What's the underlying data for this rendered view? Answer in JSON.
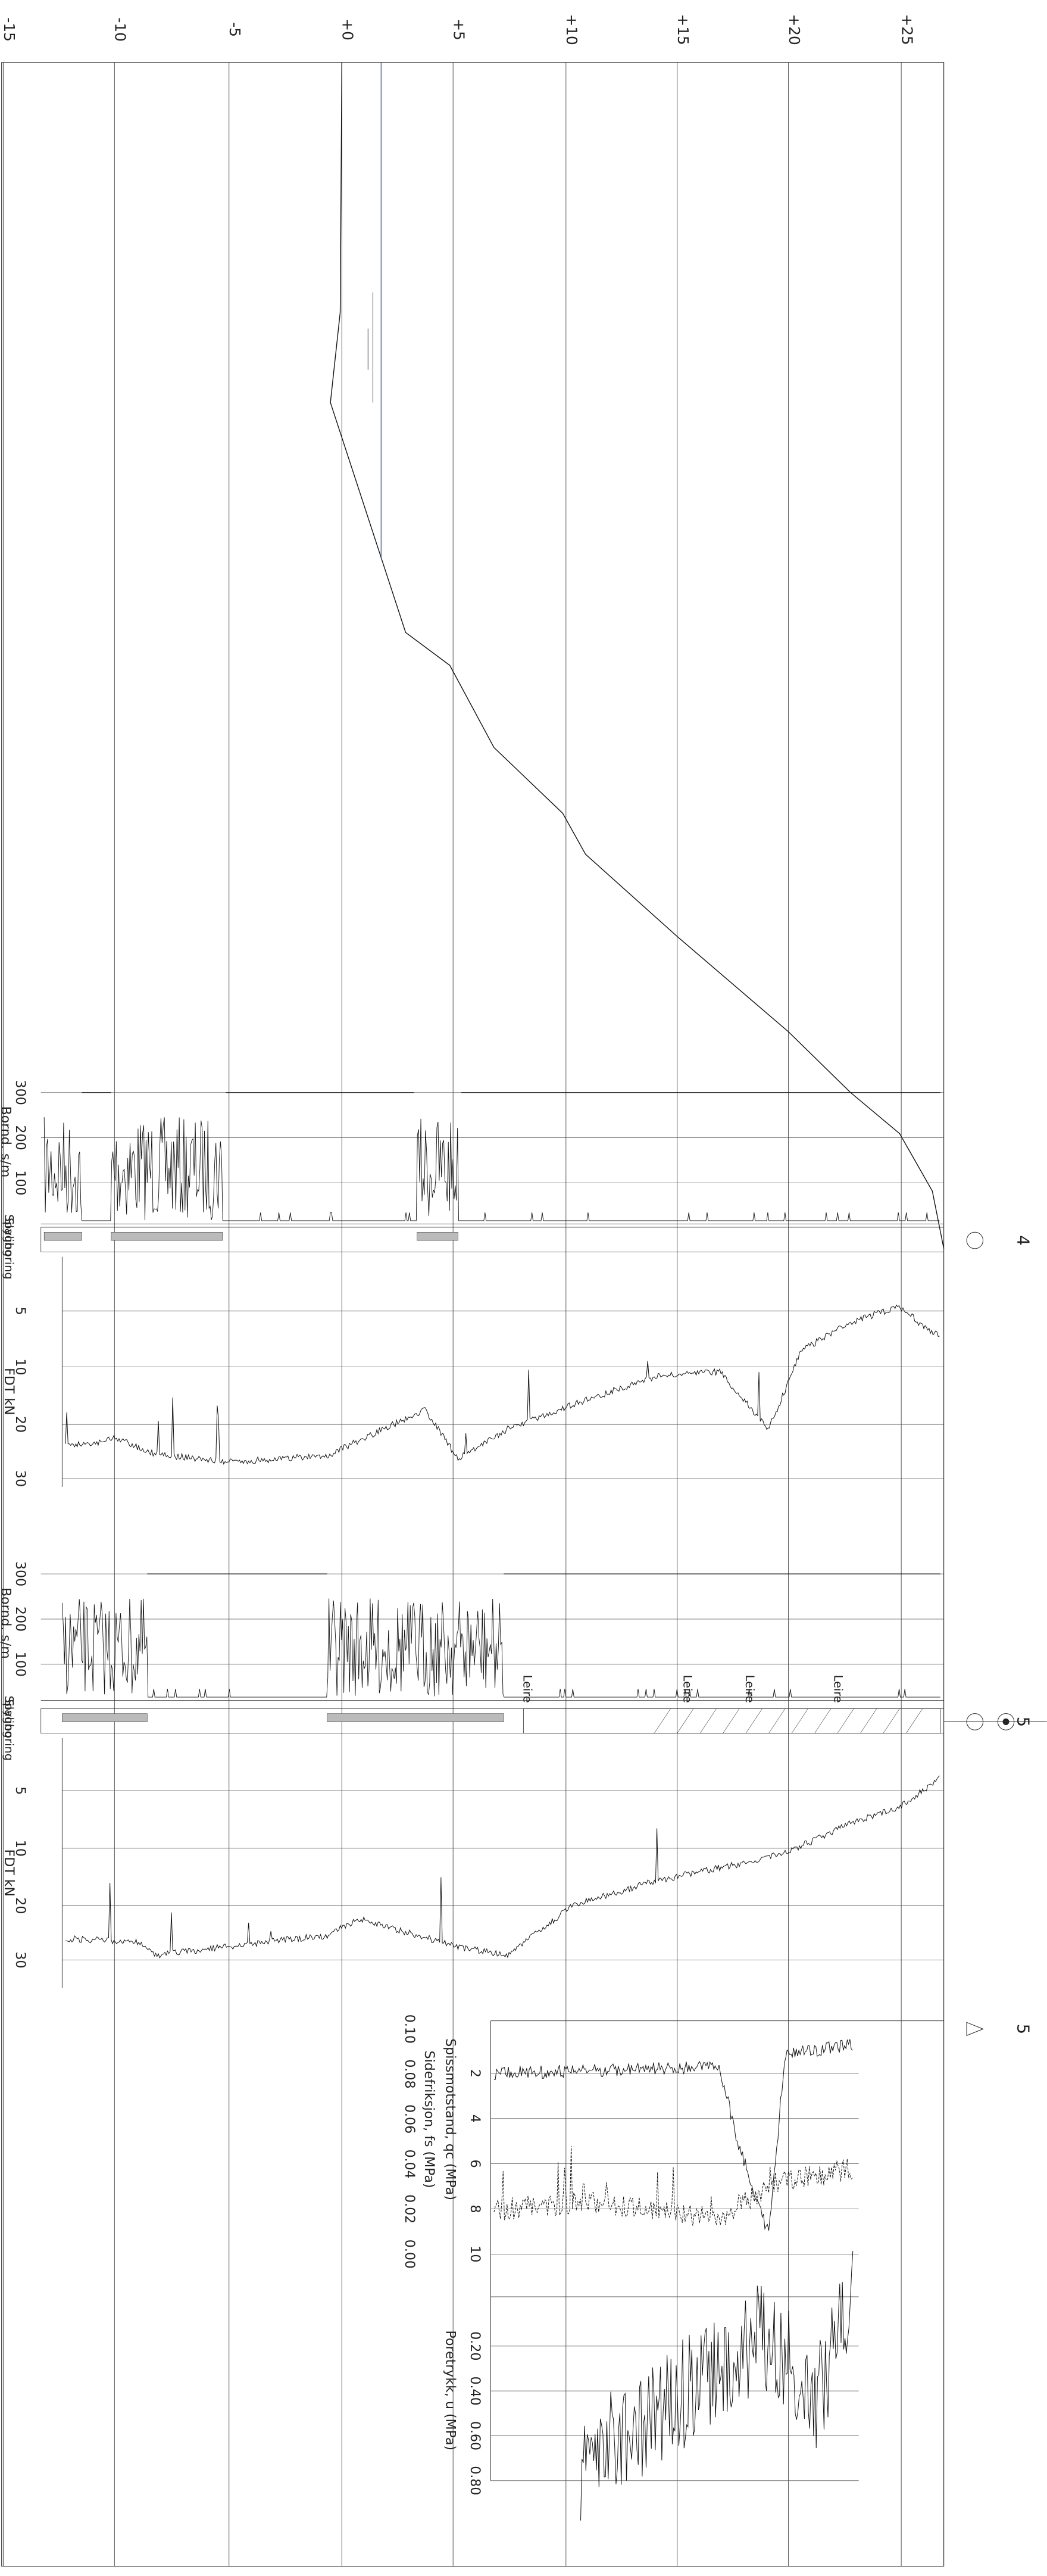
{
  "elevation_labels": [
    "-15",
    "-10",
    "-5",
    "+0",
    "+5",
    "+10",
    "+15",
    "+20",
    "+25"
  ],
  "boreholes": [
    "4",
    "5",
    "5"
  ],
  "sounding_1": {
    "title": "Bornd. s/m",
    "ticks": [
      "300",
      "200",
      "100"
    ],
    "legend": [
      "Spyling",
      "Slagboring"
    ]
  },
  "dt_1": {
    "title": "FDT kN",
    "ticks": [
      "5",
      "10",
      "20",
      "30"
    ]
  },
  "sounding_2": {
    "title": "Bornd. s/m",
    "ticks": [
      "300",
      "200",
      "100"
    ],
    "legend": [
      "Spyling",
      "Slagboring"
    ],
    "soil_labels": [
      "Leire",
      "Leire",
      "Leire",
      "Leire"
    ]
  },
  "dt_2": {
    "title": "FDT kN",
    "ticks": [
      "5",
      "10",
      "20",
      "30"
    ]
  },
  "cptu": {
    "qc_title": "Spissmotstand, qc (MPa)",
    "qc_ticks": [
      "2",
      "4",
      "6",
      "8",
      "10"
    ],
    "fs_title": "Sidefriksjon, fs (MPa)",
    "fs_ticks": [
      "0.10",
      "0.08",
      "0.06",
      "0.04",
      "0.02",
      "0.00"
    ],
    "u_title": "Poretrykk, u (MPa)",
    "u_ticks": [
      "0.20",
      "0.40",
      "0.60",
      "0.80"
    ]
  }
}
